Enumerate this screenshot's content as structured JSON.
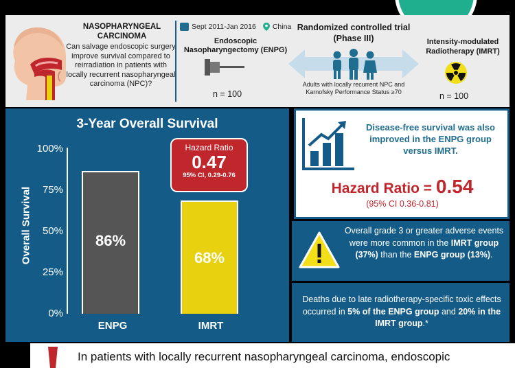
{
  "header": {
    "npc_title": "NASOPHARYNGEAL CARCINOMA",
    "npc_question": "Can salvage endoscopic surgery improve survival compared to reirradiation in patients with locally recurrent nasopharyngeal carcinoma (NPC)?",
    "dates": "Sept 2011-Jan 2016",
    "location": "China",
    "enpg_label": "Endoscopic Nasopharyngectomy (ENPG)",
    "enpg_n": "n = 100",
    "trial_title": "Randomized controlled trial (Phase III)",
    "trial_sub": "Adults with locally recurrent NPC and Karnofsky Performance Status ≥70",
    "imrt_label": "Intensity-modulated Radiotherapy (IMRT)",
    "imrt_n": "n = 100"
  },
  "chart": {
    "title": "3-Year Overall Survival",
    "ylabel": "Overall Survival",
    "ticks": [
      "100%",
      "75%",
      "50%",
      "25%",
      "0%"
    ],
    "hazard_title": "Hazard Ratio",
    "hazard_value": "0.47",
    "hazard_ci": "95% CI, 0.29-0.76"
  },
  "chart_data": {
    "type": "bar",
    "categories": [
      "ENPG",
      "IMRT"
    ],
    "values": [
      86,
      68
    ],
    "value_labels": [
      "86%",
      "68%"
    ],
    "title": "3-Year Overall Survival",
    "xlabel": "",
    "ylabel": "Overall Survival",
    "ylim": [
      0,
      100
    ],
    "colors": [
      "#555555",
      "#e8d20f"
    ]
  },
  "dfs": {
    "text": "Disease-free survival was also improved in the ENPG group versus IMRT.",
    "hr_label": "Hazard Ratio = ",
    "hr_value": "0.54",
    "hr_ci": "(95% CI 0.36-0.81)"
  },
  "adverse": {
    "pre": "Overall grade 3 or greater adverse events were more common in the ",
    "imrt": "IMRT group (37%)",
    "mid": " than the ",
    "enpg": "ENPG group (13%)",
    "post": "."
  },
  "deaths": {
    "pre": "Deaths due to late radiotherapy-specific toxic effects occurred in ",
    "enpg": "5% of the ENPG group",
    "mid": " and ",
    "imrt": "20% in the IMRT group",
    "post": ".*"
  },
  "conclusion": "In patients with locally recurrent nasopharyngeal carcinoma, endoscopic",
  "colors": {
    "navy": "#145c87",
    "red": "#c0272d",
    "yellow": "#e8d20f",
    "teal": "#1fae8e"
  }
}
